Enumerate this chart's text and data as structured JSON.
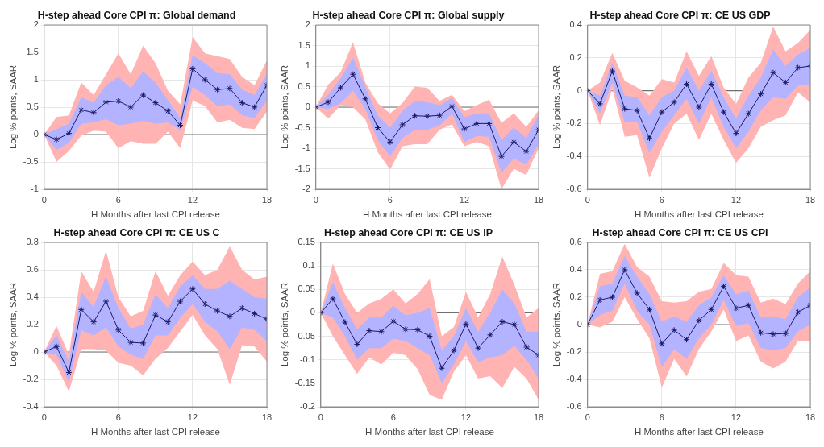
{
  "chart_data": [
    {
      "type": "line",
      "title": "H-step ahead Core CPI π: Global demand",
      "xlabel": "H Months after last CPI release",
      "ylabel": "Log % points, SAAR",
      "x": [
        0,
        1,
        2,
        3,
        4,
        5,
        6,
        7,
        8,
        9,
        10,
        11,
        12,
        13,
        14,
        15,
        16,
        17,
        18
      ],
      "xlim": [
        0,
        18
      ],
      "xticks": [
        0,
        6,
        12,
        18
      ],
      "ylim": [
        -1,
        2
      ],
      "yticks": [
        -1,
        -0.5,
        0,
        0.5,
        1,
        1.5,
        2
      ],
      "grid": true,
      "marker": "cross",
      "line_style": "solid",
      "ref_lines": [
        {
          "axis": "y",
          "value": 0,
          "color": "#707070"
        }
      ],
      "series": [
        {
          "color": "#ffb3b3",
          "values": [
            null,
            null,
            null,
            null,
            null,
            null,
            null,
            null,
            null,
            null,
            null,
            null,
            null,
            null,
            null,
            null,
            null,
            null,
            null
          ],
          "lower": [
            0,
            -0.5,
            -0.3,
            -0.02,
            0.07,
            0.05,
            -0.25,
            -0.12,
            -0.17,
            -0.17,
            0.05,
            -0.25,
            0.62,
            0.52,
            0.22,
            0.27,
            0.12,
            0.1,
            0.42
          ],
          "upper": [
            0,
            0.32,
            0.35,
            0.95,
            0.72,
            1.1,
            1.48,
            1.1,
            1.62,
            1.3,
            0.8,
            0.55,
            1.78,
            1.48,
            1.43,
            1.38,
            1.05,
            0.9,
            1.35
          ]
        },
        {
          "color": "#b3b3ff",
          "values": [
            null,
            null,
            null,
            null,
            null,
            null,
            null,
            null,
            null,
            null,
            null,
            null,
            null,
            null,
            null,
            null,
            null,
            null,
            null
          ],
          "lower": [
            0,
            -0.28,
            -0.15,
            0.2,
            0.22,
            0.28,
            0.17,
            0.2,
            0.25,
            0.2,
            0.22,
            0.08,
            0.87,
            0.72,
            0.52,
            0.55,
            0.35,
            0.3,
            0.62
          ],
          "upper": [
            0,
            0.1,
            0.2,
            0.68,
            0.58,
            0.9,
            1.05,
            0.85,
            1.15,
            0.95,
            0.63,
            0.3,
            1.45,
            1.3,
            1.12,
            1.1,
            0.82,
            0.72,
            1.1
          ]
        },
        {
          "color": "#1a1a66",
          "values": [
            0,
            -0.09,
            0.02,
            0.45,
            0.4,
            0.59,
            0.61,
            0.5,
            0.72,
            0.58,
            0.43,
            0.17,
            1.2,
            1.0,
            0.82,
            0.84,
            0.58,
            0.5,
            0.9
          ]
        }
      ]
    },
    {
      "type": "line",
      "title": "H-step ahead Core CPI π: Global supply",
      "xlabel": "H Months after last CPI release",
      "ylabel": "Log % points, SAAR",
      "x": [
        0,
        1,
        2,
        3,
        4,
        5,
        6,
        7,
        8,
        9,
        10,
        11,
        12,
        13,
        14,
        15,
        16,
        17,
        18
      ],
      "xlim": [
        0,
        18
      ],
      "xticks": [
        0,
        6,
        12,
        18
      ],
      "ylim": [
        -2,
        2
      ],
      "yticks": [
        -2,
        -1.5,
        -1,
        -0.5,
        0,
        0.5,
        1,
        1.5,
        2
      ],
      "grid": true,
      "marker": "cross",
      "line_style": "solid",
      "ref_lines": [
        {
          "axis": "y",
          "value": 0,
          "color": "#707070"
        }
      ],
      "series": [
        {
          "color": "#ffb3b3",
          "values": [
            null,
            null,
            null,
            null,
            null,
            null,
            null,
            null,
            null,
            null,
            null,
            null,
            null,
            null,
            null,
            null,
            null,
            null,
            null
          ],
          "lower": [
            0,
            -0.28,
            0.05,
            0,
            -0.3,
            -1.1,
            -1.52,
            -0.95,
            -0.9,
            -0.9,
            -0.55,
            -0.42,
            -0.95,
            -0.85,
            -0.95,
            -2.0,
            -1.5,
            -1.65,
            -1.0
          ],
          "upper": [
            0,
            0.55,
            0.85,
            1.58,
            0.6,
            0.1,
            -0.15,
            0.1,
            0.5,
            0.47,
            0.15,
            0.3,
            -0.1,
            0.05,
            0.18,
            -0.38,
            -0.15,
            -0.48,
            -0.08
          ]
        },
        {
          "color": "#b3b3ff",
          "values": [
            null,
            null,
            null,
            null,
            null,
            null,
            null,
            null,
            null,
            null,
            null,
            null,
            null,
            null,
            null,
            null,
            null,
            null,
            null
          ],
          "lower": [
            0,
            -0.05,
            0.1,
            0.4,
            -0.05,
            -0.8,
            -1.2,
            -0.75,
            -0.55,
            -0.55,
            -0.45,
            -0.15,
            -0.85,
            -0.7,
            -0.72,
            -1.6,
            -1.25,
            -1.4,
            -0.9
          ],
          "upper": [
            0,
            0.3,
            0.7,
            1.2,
            0.5,
            -0.2,
            -0.5,
            -0.1,
            0.15,
            0.12,
            0.05,
            0.22,
            -0.25,
            -0.15,
            -0.15,
            -0.8,
            -0.5,
            -0.75,
            -0.2
          ]
        },
        {
          "color": "#1a1a66",
          "values": [
            0,
            0.12,
            0.47,
            0.8,
            0.2,
            -0.5,
            -0.85,
            -0.43,
            -0.21,
            -0.22,
            -0.2,
            0.02,
            -0.53,
            -0.4,
            -0.4,
            -1.2,
            -0.85,
            -1.08,
            -0.55
          ]
        }
      ]
    },
    {
      "type": "line",
      "title": "H-step ahead Core CPI π: CE US GDP",
      "xlabel": "H Months after last CPI release",
      "ylabel": "Log % points, SAAR",
      "x": [
        0,
        1,
        2,
        3,
        4,
        5,
        6,
        7,
        8,
        9,
        10,
        11,
        12,
        13,
        14,
        15,
        16,
        17,
        18
      ],
      "xlim": [
        0,
        18
      ],
      "xticks": [
        0,
        6,
        12,
        18
      ],
      "ylim": [
        -0.6,
        0.4
      ],
      "yticks": [
        -0.6,
        -0.4,
        -0.2,
        0,
        0.2,
        0.4
      ],
      "grid": true,
      "marker": "cross",
      "line_style": "solid",
      "ref_lines": [
        {
          "axis": "y",
          "value": 0,
          "color": "#707070"
        }
      ],
      "series": [
        {
          "color": "#ffb3b3",
          "values": [
            null,
            null,
            null,
            null,
            null,
            null,
            null,
            null,
            null,
            null,
            null,
            null,
            null,
            null,
            null,
            null,
            null,
            null,
            null
          ],
          "lower": [
            0,
            -0.21,
            0.01,
            -0.28,
            -0.27,
            -0.53,
            -0.35,
            -0.2,
            -0.14,
            -0.3,
            -0.14,
            -0.3,
            -0.44,
            -0.35,
            -0.22,
            -0.18,
            -0.15,
            -0.01,
            -0.07
          ],
          "upper": [
            0,
            0.05,
            0.23,
            0.06,
            0.02,
            -0.03,
            0.07,
            0.05,
            0.24,
            0.09,
            0.21,
            0.02,
            -0.08,
            0.08,
            0.17,
            0.39,
            0.24,
            0.29,
            0.37
          ]
        },
        {
          "color": "#b3b3ff",
          "values": [
            null,
            null,
            null,
            null,
            null,
            null,
            null,
            null,
            null,
            null,
            null,
            null,
            null,
            null,
            null,
            null,
            null,
            null,
            null
          ],
          "lower": [
            0,
            -0.14,
            0.05,
            -0.19,
            -0.19,
            -0.38,
            -0.25,
            -0.15,
            -0.05,
            -0.2,
            -0.04,
            -0.22,
            -0.35,
            -0.25,
            -0.12,
            -0.04,
            -0.05,
            0.03,
            0.04
          ],
          "upper": [
            0,
            -0.03,
            0.17,
            -0.03,
            -0.04,
            -0.15,
            -0.04,
            0,
            0.14,
            0,
            0.12,
            -0.04,
            -0.17,
            -0.03,
            0.08,
            0.25,
            0.15,
            0.22,
            0.26
          ]
        },
        {
          "color": "#1a1a66",
          "values": [
            0,
            -0.08,
            0.12,
            -0.11,
            -0.12,
            -0.29,
            -0.13,
            -0.07,
            0.04,
            -0.1,
            0.04,
            -0.13,
            -0.26,
            -0.14,
            -0.02,
            0.11,
            0.05,
            0.14,
            0.15
          ]
        }
      ]
    },
    {
      "type": "line",
      "title": "H-step ahead Core CPI π: CE US C",
      "xlabel": "H Months after last CPI release",
      "ylabel": "Log % points, SAAR",
      "x": [
        0,
        1,
        2,
        3,
        4,
        5,
        6,
        7,
        8,
        9,
        10,
        11,
        12,
        13,
        14,
        15,
        16,
        17,
        18
      ],
      "xlim": [
        0,
        18
      ],
      "xticks": [
        0,
        6,
        12,
        18
      ],
      "ylim": [
        -0.4,
        0.8
      ],
      "yticks": [
        -0.4,
        -0.2,
        0,
        0.2,
        0.4,
        0.6,
        0.8
      ],
      "grid": true,
      "marker": "cross",
      "line_style": "solid",
      "ref_lines": [
        {
          "axis": "y",
          "value": 0,
          "color": "#707070"
        }
      ],
      "series": [
        {
          "color": "#ffb3b3",
          "values": [
            null,
            null,
            null,
            null,
            null,
            null,
            null,
            null,
            null,
            null,
            null,
            null,
            null,
            null,
            null,
            null,
            null,
            null,
            null
          ],
          "lower": [
            0,
            -0.1,
            -0.29,
            0.02,
            0.02,
            0.01,
            -0.08,
            -0.1,
            -0.17,
            -0.05,
            0.03,
            0.15,
            0.27,
            0.12,
            0.02,
            -0.24,
            0.05,
            0.04,
            -0.07
          ],
          "upper": [
            0,
            0.19,
            -0.02,
            0.59,
            0.44,
            0.74,
            0.4,
            0.26,
            0.3,
            0.59,
            0.41,
            0.56,
            0.66,
            0.56,
            0.6,
            0.77,
            0.6,
            0.53,
            0.55
          ]
        },
        {
          "color": "#b3b3ff",
          "values": [
            null,
            null,
            null,
            null,
            null,
            null,
            null,
            null,
            null,
            null,
            null,
            null,
            null,
            null,
            null,
            null,
            null,
            null,
            null
          ],
          "lower": [
            0,
            -0.02,
            -0.22,
            0.16,
            0.12,
            0.18,
            0.04,
            -0.02,
            -0.05,
            0.12,
            0.12,
            0.25,
            0.35,
            0.22,
            0.15,
            0.02,
            0.18,
            0.16,
            0.08
          ],
          "upper": [
            0,
            0.12,
            -0.07,
            0.44,
            0.33,
            0.55,
            0.32,
            0.17,
            0.2,
            0.42,
            0.32,
            0.48,
            0.56,
            0.46,
            0.46,
            0.52,
            0.46,
            0.4,
            0.39
          ]
        },
        {
          "color": "#1a1a66",
          "values": [
            0,
            0.04,
            -0.15,
            0.31,
            0.22,
            0.37,
            0.16,
            0.07,
            0.065,
            0.27,
            0.22,
            0.37,
            0.46,
            0.35,
            0.3,
            0.26,
            0.32,
            0.28,
            0.24
          ]
        }
      ]
    },
    {
      "type": "line",
      "title": "H-step ahead Core CPI π: CE US IP",
      "xlabel": "H Months after last CPI release",
      "ylabel": "Log % points, SAAR",
      "x": [
        0,
        1,
        2,
        3,
        4,
        5,
        6,
        7,
        8,
        9,
        10,
        11,
        12,
        13,
        14,
        15,
        16,
        17,
        18
      ],
      "xlim": [
        0,
        18
      ],
      "xticks": [
        0,
        6,
        12,
        18
      ],
      "ylim": [
        -0.2,
        0.15
      ],
      "yticks": [
        -0.2,
        -0.15,
        -0.1,
        -0.05,
        0,
        0.05,
        0.1,
        0.15
      ],
      "grid": true,
      "marker": "cross",
      "line_style": "solid",
      "ref_lines": [
        {
          "axis": "y",
          "value": 0,
          "color": "#707070"
        }
      ],
      "series": [
        {
          "color": "#ffb3b3",
          "values": [
            null,
            null,
            null,
            null,
            null,
            null,
            null,
            null,
            null,
            null,
            null,
            null,
            null,
            null,
            null,
            null,
            null,
            null,
            null
          ],
          "lower": [
            0,
            -0.05,
            -0.09,
            -0.13,
            -0.095,
            -0.11,
            -0.085,
            -0.09,
            -0.12,
            -0.175,
            -0.185,
            -0.125,
            -0.09,
            -0.14,
            -0.135,
            -0.16,
            -0.115,
            -0.14,
            -0.185
          ],
          "upper": [
            0,
            0.105,
            0.04,
            0,
            0.02,
            0.03,
            0.05,
            0.02,
            0.04,
            0.072,
            -0.05,
            -0.03,
            0.045,
            -0.01,
            0.04,
            0.12,
            0.06,
            -0.01,
            0.01
          ]
        },
        {
          "color": "#b3b3ff",
          "values": [
            null,
            null,
            null,
            null,
            null,
            null,
            null,
            null,
            null,
            null,
            null,
            null,
            null,
            null,
            null,
            null,
            null,
            null,
            null
          ],
          "lower": [
            0,
            -0.01,
            -0.05,
            -0.1,
            -0.075,
            -0.075,
            -0.055,
            -0.06,
            -0.075,
            -0.09,
            -0.15,
            -0.11,
            -0.06,
            -0.105,
            -0.095,
            -0.09,
            -0.07,
            -0.1,
            -0.14
          ],
          "upper": [
            0,
            0.065,
            0.01,
            -0.035,
            -0.01,
            -0.01,
            0.015,
            -0.005,
            0,
            0.01,
            -0.08,
            -0.05,
            0.01,
            -0.04,
            0,
            0.05,
            0.02,
            -0.04,
            -0.04
          ]
        },
        {
          "color": "#1a1a66",
          "values": [
            0,
            0.03,
            -0.02,
            -0.067,
            -0.038,
            -0.04,
            -0.018,
            -0.035,
            -0.036,
            -0.05,
            -0.118,
            -0.08,
            -0.024,
            -0.075,
            -0.047,
            -0.019,
            -0.025,
            -0.073,
            -0.09
          ]
        }
      ]
    },
    {
      "type": "line",
      "title": "H-step ahead Core CPI π: CE US CPI",
      "xlabel": "H Months after last CPI release",
      "ylabel": "Log % points, SAAR",
      "x": [
        0,
        1,
        2,
        3,
        4,
        5,
        6,
        7,
        8,
        9,
        10,
        11,
        12,
        13,
        14,
        15,
        16,
        17,
        18
      ],
      "xlim": [
        0,
        18
      ],
      "xticks": [
        0,
        6,
        12,
        18
      ],
      "ylim": [
        -0.6,
        0.6
      ],
      "yticks": [
        -0.6,
        -0.4,
        -0.2,
        0,
        0.2,
        0.4,
        0.6
      ],
      "grid": true,
      "marker": "cross",
      "line_style": "solid",
      "ref_lines": [
        {
          "axis": "y",
          "value": 0,
          "color": "#707070"
        }
      ],
      "series": [
        {
          "color": "#ffb3b3",
          "values": [
            null,
            null,
            null,
            null,
            null,
            null,
            null,
            null,
            null,
            null,
            null,
            null,
            null,
            null,
            null,
            null,
            null,
            null,
            null
          ],
          "lower": [
            0,
            -0.02,
            0.02,
            0.2,
            0.04,
            -0.1,
            -0.46,
            -0.25,
            -0.38,
            -0.18,
            -0.05,
            0.11,
            -0.12,
            -0.08,
            -0.27,
            -0.32,
            -0.27,
            -0.12,
            -0.12
          ],
          "upper": [
            0,
            0.37,
            0.39,
            0.59,
            0.42,
            0.35,
            0.17,
            0.16,
            0.17,
            0.24,
            0.26,
            0.45,
            0.36,
            0.35,
            0.16,
            0.19,
            0.15,
            0.3,
            0.39
          ]
        },
        {
          "color": "#b3b3ff",
          "values": [
            null,
            null,
            null,
            null,
            null,
            null,
            null,
            null,
            null,
            null,
            null,
            null,
            null,
            null,
            null,
            null,
            null,
            null,
            null
          ],
          "lower": [
            0,
            0.07,
            0.1,
            0.3,
            0.1,
            0,
            -0.31,
            -0.18,
            -0.25,
            -0.1,
            0,
            0.18,
            -0.01,
            0.01,
            -0.17,
            -0.19,
            -0.17,
            -0.05,
            0
          ],
          "upper": [
            0,
            0.28,
            0.3,
            0.5,
            0.35,
            0.22,
            0.02,
            0.06,
            0.02,
            0.14,
            0.2,
            0.36,
            0.22,
            0.25,
            0.05,
            0.06,
            0.04,
            0.2,
            0.27
          ]
        },
        {
          "color": "#1a1a66",
          "values": [
            0,
            0.18,
            0.2,
            0.4,
            0.23,
            0.11,
            -0.14,
            -0.04,
            -0.11,
            0.03,
            0.11,
            0.28,
            0.12,
            0.14,
            -0.06,
            -0.07,
            -0.065,
            0.09,
            0.14
          ]
        }
      ]
    }
  ]
}
